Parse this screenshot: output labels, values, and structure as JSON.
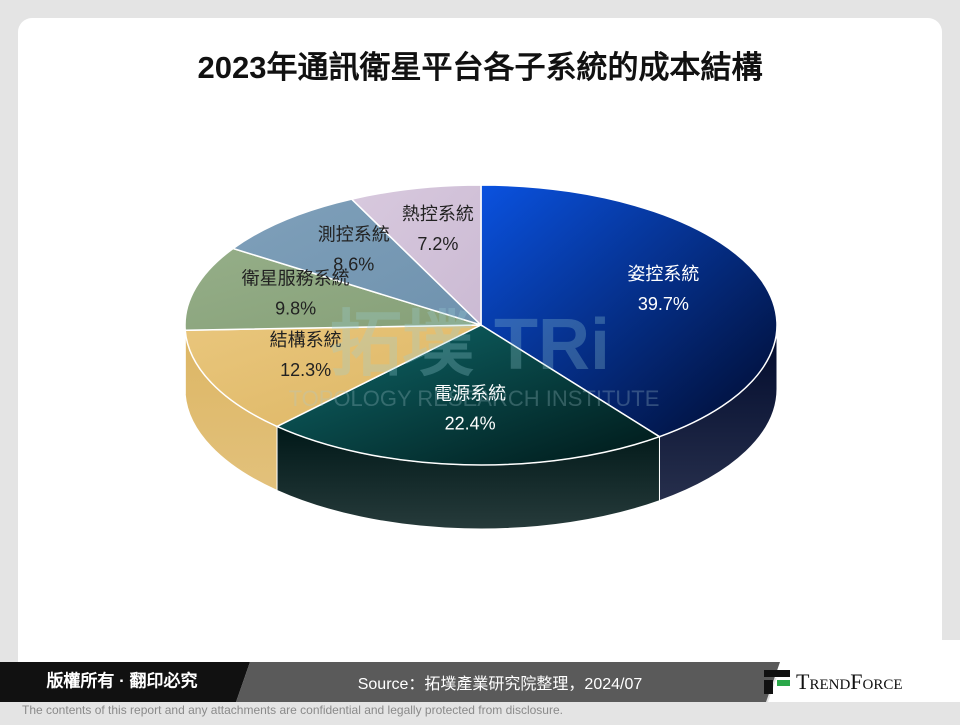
{
  "chart_data": {
    "type": "pie3d",
    "title": "2023年通訊衛星平台各子系統的成本結構",
    "categories": [
      "姿控系統",
      "電源系統",
      "結構系統",
      "衛星服務系統",
      "測控系統",
      "熱控系統"
    ],
    "values": [
      39.7,
      22.4,
      12.3,
      9.8,
      8.6,
      7.2
    ],
    "value_labels": [
      "39.7%",
      "22.4%",
      "12.3%",
      "9.8%",
      "8.6%",
      "7.2%"
    ],
    "colors": [
      "#0a52e0",
      "#0f6a6c",
      "#e9c67c",
      "#95ae88",
      "#7fa0ba",
      "#d8c9de"
    ],
    "colors_end": [
      "#000a2c",
      "#001818",
      "#ddb664",
      "#86a078",
      "#6f92ae",
      "#cbbad3"
    ],
    "label_colors": [
      "#ffffff",
      "#ffffff",
      "#222222",
      "#222222",
      "#222222",
      "#222222"
    ]
  },
  "watermark": {
    "logo": "拓墣 TRi",
    "name": "TOPOLOGY RESEARCH INSTITUTE"
  },
  "footer": {
    "rights": "版權所有 · 翻印必究",
    "source": "Source：拓墣產業研究院整理，2024/07",
    "brand": "TrendForce",
    "disclaimer": "The contents of this report and any attachments are confidential and legally protected from disclosure."
  }
}
